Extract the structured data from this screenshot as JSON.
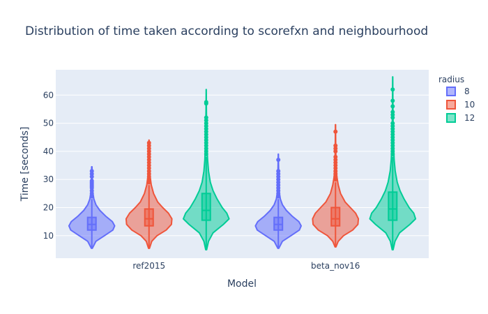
{
  "chart_data": {
    "type": "violin",
    "title": "Distribution of time taken according to scorefxn and neighbourhood",
    "xlabel": "Model",
    "ylabel": "Time [seconds]",
    "categories": [
      "ref2015",
      "beta_nov16"
    ],
    "ylim": [
      2,
      69
    ],
    "yticks": [
      10,
      20,
      30,
      40,
      50,
      60
    ],
    "grid": true,
    "legend": {
      "title": "radius",
      "position": "right"
    },
    "series": [
      {
        "name": "8",
        "color": "#636efa",
        "stats": [
          {
            "category": "ref2015",
            "min": 5.5,
            "q1": 12,
            "median": 14,
            "q3": 16.5,
            "max": 34.5,
            "whisker_high": 23,
            "outliers": [
              24,
              25,
              26,
              27,
              27.5,
              28,
              28.5,
              29,
              29.5,
              31,
              32,
              33
            ],
            "density": [
              [
                5.5,
                0.02
              ],
              [
                8,
                0.18
              ],
              [
                10,
                0.55
              ],
              [
                12,
                0.92
              ],
              [
                13.5,
                1.0
              ],
              [
                15,
                0.9
              ],
              [
                17,
                0.6
              ],
              [
                19,
                0.35
              ],
              [
                21,
                0.18
              ],
              [
                23,
                0.09
              ],
              [
                25,
                0.05
              ],
              [
                28,
                0.03
              ],
              [
                31,
                0.02
              ],
              [
                34.5,
                0.01
              ]
            ]
          },
          {
            "category": "beta_nov16",
            "min": 5.5,
            "q1": 12,
            "median": 14,
            "q3": 16.5,
            "max": 39,
            "whisker_high": 23,
            "outliers": [
              24,
              25,
              26,
              27,
              28,
              29,
              30,
              31,
              32,
              33,
              37
            ],
            "density": [
              [
                5.5,
                0.02
              ],
              [
                8,
                0.18
              ],
              [
                10,
                0.55
              ],
              [
                12,
                0.92
              ],
              [
                13.5,
                1.0
              ],
              [
                15,
                0.9
              ],
              [
                17,
                0.6
              ],
              [
                19,
                0.35
              ],
              [
                21,
                0.18
              ],
              [
                23,
                0.09
              ],
              [
                25,
                0.05
              ],
              [
                28,
                0.03
              ],
              [
                32,
                0.02
              ],
              [
                36,
                0.01
              ],
              [
                39,
                0.005
              ]
            ]
          }
        ]
      },
      {
        "name": "10",
        "color": "#ef553b",
        "stats": [
          {
            "category": "ref2015",
            "min": 5.5,
            "q1": 13.5,
            "median": 16,
            "q3": 19.5,
            "max": 44,
            "whisker_high": 28,
            "outliers": [
              29,
              30,
              31,
              32,
              33,
              34,
              35,
              36,
              37,
              38,
              39,
              40,
              41,
              42,
              43
            ],
            "density": [
              [
                5.5,
                0.02
              ],
              [
                8,
                0.12
              ],
              [
                10,
                0.35
              ],
              [
                12,
                0.75
              ],
              [
                14,
                0.98
              ],
              [
                16,
                1.0
              ],
              [
                18,
                0.85
              ],
              [
                20,
                0.6
              ],
              [
                22,
                0.38
              ],
              [
                25,
                0.2
              ],
              [
                28,
                0.1
              ],
              [
                31,
                0.05
              ],
              [
                35,
                0.03
              ],
              [
                40,
                0.015
              ],
              [
                44,
                0.005
              ]
            ]
          },
          {
            "category": "beta_nov16",
            "min": 6,
            "q1": 13.5,
            "median": 16,
            "q3": 20,
            "max": 49.5,
            "whisker_high": 29,
            "outliers": [
              30,
              31,
              32,
              33,
              34,
              35,
              36,
              37,
              38,
              40,
              41,
              42,
              47
            ],
            "density": [
              [
                6,
                0.02
              ],
              [
                8,
                0.12
              ],
              [
                10,
                0.35
              ],
              [
                12,
                0.75
              ],
              [
                14,
                0.98
              ],
              [
                16,
                1.0
              ],
              [
                18,
                0.88
              ],
              [
                20,
                0.65
              ],
              [
                22,
                0.42
              ],
              [
                25,
                0.22
              ],
              [
                28,
                0.12
              ],
              [
                31,
                0.06
              ],
              [
                35,
                0.03
              ],
              [
                40,
                0.015
              ],
              [
                45,
                0.008
              ],
              [
                49.5,
                0.004
              ]
            ]
          }
        ]
      },
      {
        "name": "12",
        "color": "#00cc96",
        "stats": [
          {
            "category": "ref2015",
            "min": 5,
            "q1": 15.5,
            "median": 19,
            "q3": 25,
            "max": 62,
            "whisker_high": 38,
            "outliers": [
              39,
              40,
              41,
              42,
              43,
              44,
              45,
              46,
              47,
              48,
              49,
              50,
              51,
              52,
              57,
              57.5
            ],
            "density": [
              [
                5,
                0.02
              ],
              [
                8,
                0.1
              ],
              [
                11,
                0.3
              ],
              [
                14,
                0.75
              ],
              [
                16,
                1.0
              ],
              [
                18,
                0.9
              ],
              [
                20,
                0.7
              ],
              [
                23,
                0.48
              ],
              [
                26,
                0.3
              ],
              [
                29,
                0.18
              ],
              [
                33,
                0.1
              ],
              [
                37,
                0.06
              ],
              [
                42,
                0.035
              ],
              [
                48,
                0.02
              ],
              [
                55,
                0.01
              ],
              [
                62,
                0.004
              ]
            ]
          },
          {
            "category": "beta_nov16",
            "min": 5,
            "q1": 15.5,
            "median": 19.5,
            "q3": 25.5,
            "max": 66.5,
            "whisker_high": 38,
            "outliers": [
              39,
              40,
              41,
              42,
              43,
              44,
              45,
              46,
              47,
              48,
              49,
              50,
              52,
              53,
              54,
              56,
              58,
              62
            ],
            "density": [
              [
                5,
                0.02
              ],
              [
                8,
                0.1
              ],
              [
                11,
                0.3
              ],
              [
                14,
                0.75
              ],
              [
                16,
                1.0
              ],
              [
                18,
                0.92
              ],
              [
                20,
                0.72
              ],
              [
                23,
                0.5
              ],
              [
                26,
                0.32
              ],
              [
                29,
                0.2
              ],
              [
                33,
                0.11
              ],
              [
                37,
                0.065
              ],
              [
                42,
                0.04
              ],
              [
                48,
                0.022
              ],
              [
                55,
                0.012
              ],
              [
                62,
                0.006
              ],
              [
                66.5,
                0.003
              ]
            ]
          }
        ]
      }
    ]
  }
}
